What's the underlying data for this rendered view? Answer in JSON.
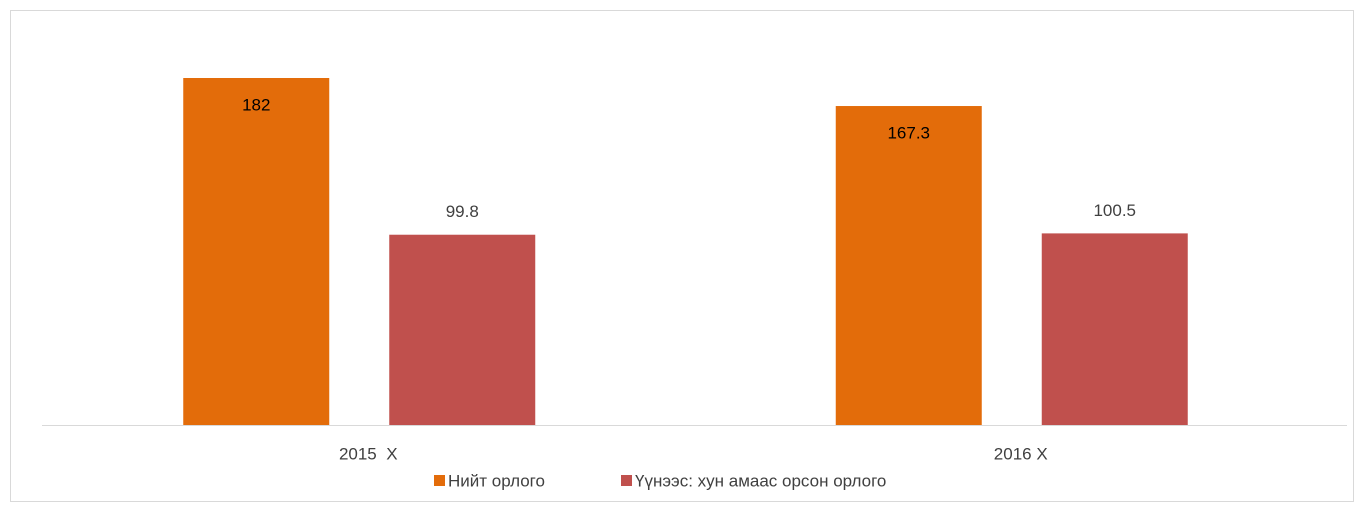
{
  "chart_data": {
    "type": "bar",
    "categories": [
      "2015  Х",
      "2016 Х"
    ],
    "series": [
      {
        "name": "Нийт орлого",
        "color": "#e36c0a",
        "values": [
          182,
          167.3
        ]
      },
      {
        "name": "Үүнээс: хун амаас орсон орлого",
        "color": "#c0504d",
        "values": [
          99.8,
          100.5
        ]
      }
    ],
    "legend": "bottom"
  }
}
